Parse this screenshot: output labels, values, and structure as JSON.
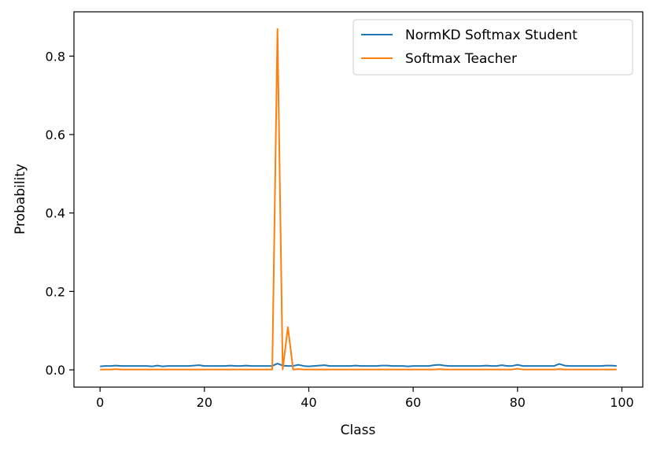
{
  "chart_data": {
    "type": "line",
    "title": "",
    "xlabel": "Class",
    "ylabel": "Probability",
    "xlim": [
      -5,
      104
    ],
    "ylim": [
      -0.044,
      0.913
    ],
    "xticks": [
      0,
      20,
      40,
      60,
      80,
      100
    ],
    "xtick_labels": [
      "0",
      "20",
      "40",
      "60",
      "80",
      "100"
    ],
    "yticks": [
      0.0,
      0.2,
      0.4,
      0.6,
      0.8
    ],
    "ytick_labels": [
      "0.0",
      "0.2",
      "0.4",
      "0.6",
      "0.8"
    ],
    "grid": false,
    "legend_position": "top-right",
    "series": [
      {
        "name": "NormKD Softmax Student",
        "color": "#1f77b4",
        "x": [
          0,
          1,
          2,
          3,
          4,
          5,
          6,
          7,
          8,
          9,
          10,
          11,
          12,
          13,
          14,
          15,
          16,
          17,
          18,
          19,
          20,
          21,
          22,
          23,
          24,
          25,
          26,
          27,
          28,
          29,
          30,
          31,
          32,
          33,
          34,
          35,
          36,
          37,
          38,
          39,
          40,
          41,
          42,
          43,
          44,
          45,
          46,
          47,
          48,
          49,
          50,
          51,
          52,
          53,
          54,
          55,
          56,
          57,
          58,
          59,
          60,
          61,
          62,
          63,
          64,
          65,
          66,
          67,
          68,
          69,
          70,
          71,
          72,
          73,
          74,
          75,
          76,
          77,
          78,
          79,
          80,
          81,
          82,
          83,
          84,
          85,
          86,
          87,
          88,
          89,
          90,
          91,
          92,
          93,
          94,
          95,
          96,
          97,
          98,
          99
        ],
        "values": [
          0.009,
          0.01,
          0.01,
          0.011,
          0.01,
          0.01,
          0.01,
          0.01,
          0.01,
          0.01,
          0.009,
          0.011,
          0.009,
          0.01,
          0.01,
          0.01,
          0.01,
          0.01,
          0.011,
          0.012,
          0.01,
          0.01,
          0.01,
          0.01,
          0.01,
          0.011,
          0.01,
          0.01,
          0.011,
          0.01,
          0.01,
          0.01,
          0.01,
          0.01,
          0.016,
          0.011,
          0.01,
          0.01,
          0.013,
          0.01,
          0.009,
          0.01,
          0.011,
          0.012,
          0.01,
          0.01,
          0.01,
          0.01,
          0.01,
          0.011,
          0.01,
          0.01,
          0.01,
          0.01,
          0.011,
          0.011,
          0.01,
          0.01,
          0.01,
          0.009,
          0.01,
          0.01,
          0.01,
          0.01,
          0.012,
          0.013,
          0.011,
          0.01,
          0.01,
          0.01,
          0.01,
          0.01,
          0.01,
          0.01,
          0.011,
          0.01,
          0.01,
          0.012,
          0.01,
          0.01,
          0.013,
          0.01,
          0.01,
          0.01,
          0.01,
          0.01,
          0.01,
          0.01,
          0.015,
          0.011,
          0.01,
          0.01,
          0.01,
          0.01,
          0.01,
          0.01,
          0.01,
          0.011,
          0.011,
          0.01
        ]
      },
      {
        "name": "Softmax Teacher",
        "color": "#ff7f0e",
        "x": [
          0,
          1,
          2,
          3,
          4,
          5,
          6,
          7,
          8,
          9,
          10,
          11,
          12,
          13,
          14,
          15,
          16,
          17,
          18,
          19,
          20,
          21,
          22,
          23,
          24,
          25,
          26,
          27,
          28,
          29,
          30,
          31,
          32,
          33,
          34,
          35,
          36,
          37,
          38,
          39,
          40,
          41,
          42,
          43,
          44,
          45,
          46,
          47,
          48,
          49,
          50,
          51,
          52,
          53,
          54,
          55,
          56,
          57,
          58,
          59,
          60,
          61,
          62,
          63,
          64,
          65,
          66,
          67,
          68,
          69,
          70,
          71,
          72,
          73,
          74,
          75,
          76,
          77,
          78,
          79,
          80,
          81,
          82,
          83,
          84,
          85,
          86,
          87,
          88,
          89,
          90,
          91,
          92,
          93,
          94,
          95,
          96,
          97,
          98,
          99
        ],
        "values": [
          0.001,
          0.001,
          0.001,
          0.002,
          0.001,
          0.001,
          0.001,
          0.001,
          0.001,
          0.001,
          0.001,
          0.001,
          0.001,
          0.001,
          0.001,
          0.001,
          0.001,
          0.001,
          0.001,
          0.001,
          0.001,
          0.001,
          0.001,
          0.001,
          0.001,
          0.001,
          0.001,
          0.001,
          0.001,
          0.001,
          0.001,
          0.001,
          0.001,
          0.001,
          0.869,
          0.001,
          0.109,
          0.001,
          0.002,
          0.001,
          0.001,
          0.001,
          0.001,
          0.001,
          0.001,
          0.001,
          0.001,
          0.001,
          0.001,
          0.001,
          0.001,
          0.001,
          0.001,
          0.001,
          0.001,
          0.001,
          0.001,
          0.001,
          0.001,
          0.001,
          0.001,
          0.001,
          0.001,
          0.001,
          0.001,
          0.002,
          0.001,
          0.001,
          0.001,
          0.001,
          0.001,
          0.001,
          0.001,
          0.001,
          0.001,
          0.001,
          0.001,
          0.001,
          0.001,
          0.001,
          0.003,
          0.001,
          0.001,
          0.001,
          0.001,
          0.001,
          0.001,
          0.001,
          0.002,
          0.001,
          0.001,
          0.001,
          0.001,
          0.001,
          0.001,
          0.001,
          0.001,
          0.001,
          0.001,
          0.001
        ]
      }
    ]
  }
}
